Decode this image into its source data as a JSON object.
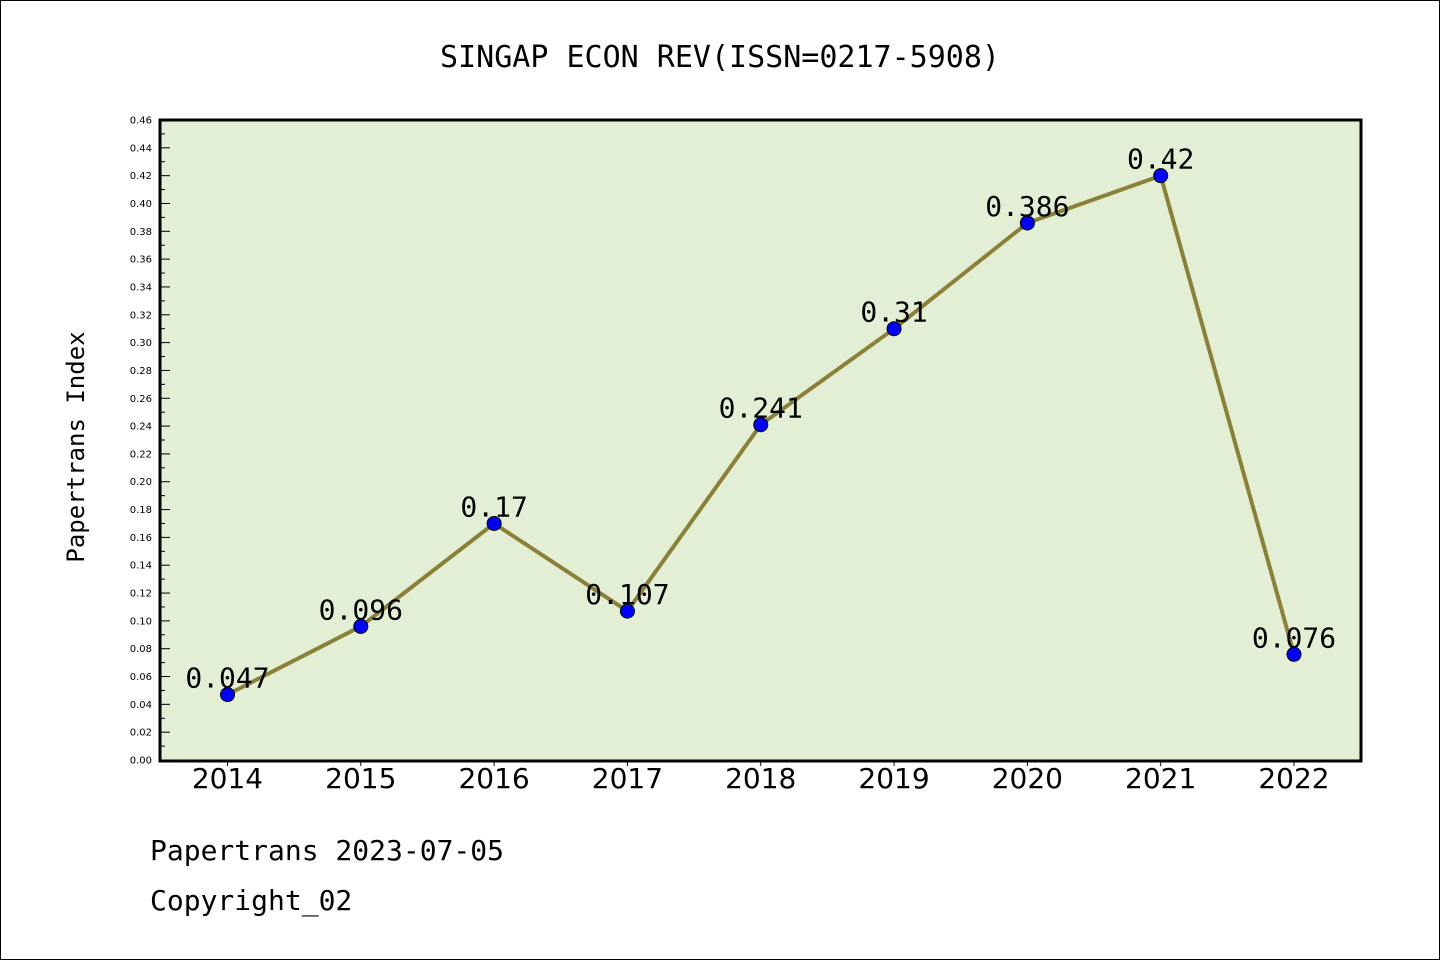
{
  "chart_data": {
    "type": "line",
    "title": "SINGAP ECON REV(ISSN=0217-5908)",
    "xlabel": "",
    "ylabel": "Papertrans Index",
    "categories": [
      "2014",
      "2015",
      "2016",
      "2017",
      "2018",
      "2019",
      "2020",
      "2021",
      "2022"
    ],
    "values": [
      0.047,
      0.096,
      0.17,
      0.107,
      0.241,
      0.31,
      0.386,
      0.42,
      0.076
    ],
    "data_labels": [
      "0.047",
      "0.096",
      "0.17",
      "0.107",
      "0.241",
      "0.31",
      "0.386",
      "0.42",
      "0.076"
    ],
    "ylim": [
      0,
      0.46
    ],
    "yticks": [
      "0.00",
      "0.02",
      "0.04",
      "0.06",
      "0.08",
      "0.10",
      "0.12",
      "0.14",
      "0.16",
      "0.18",
      "0.20",
      "0.22",
      "0.24",
      "0.26",
      "0.28",
      "0.30",
      "0.32",
      "0.34",
      "0.36",
      "0.38",
      "0.40",
      "0.42",
      "0.44",
      "0.46"
    ],
    "grid": false,
    "colors": {
      "plot_background": "#e2efd5",
      "line": "#8b8038",
      "marker": "#0000ff"
    }
  },
  "footer": {
    "source": "Papertrans 2023-07-05",
    "copyright": "Copyright_02"
  }
}
